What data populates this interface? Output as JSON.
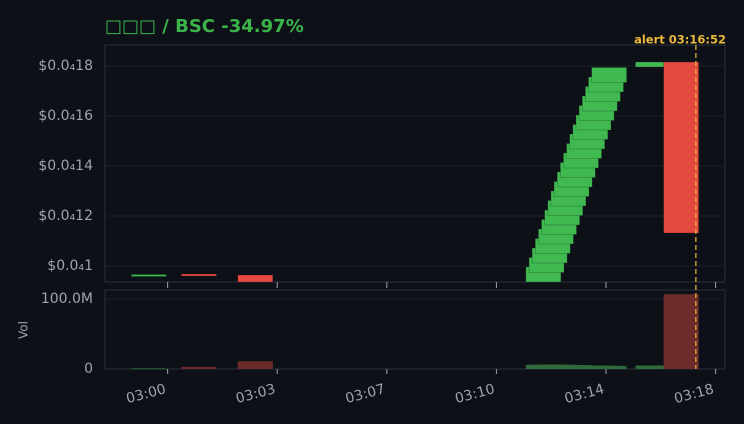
{
  "chart_data": {
    "type": "candlestick",
    "title": "□□□ / BSC  -34.97%",
    "x": [
      -0.6,
      1.0,
      2.8,
      12.0,
      12.1,
      12.2,
      12.3,
      12.4,
      12.5,
      12.6,
      12.7,
      12.8,
      12.9,
      13.0,
      13.1,
      13.2,
      13.3,
      13.4,
      13.5,
      13.6,
      13.7,
      13.8,
      13.9,
      14.0,
      14.1,
      15.5,
      16.4
    ],
    "open": [
      9.64e-06,
      9.68e-06,
      9.64e-06,
      9.36e-06,
      9.74e-06,
      1.012e-05,
      1.05e-05,
      1.088e-05,
      1.126e-05,
      1.164e-05,
      1.202e-05,
      1.24e-05,
      1.278e-05,
      1.316e-05,
      1.354e-05,
      1.392e-05,
      1.43e-05,
      1.468e-05,
      1.506e-05,
      1.544e-05,
      1.582e-05,
      1.62e-05,
      1.658e-05,
      1.696e-05,
      1.734e-05,
      1.796e-05,
      1.816e-05
    ],
    "close": [
      9.66e-06,
      9.66e-06,
      9.36e-06,
      9.96e-06,
      1.034e-05,
      1.072e-05,
      1.11e-05,
      1.148e-05,
      1.186e-05,
      1.224e-05,
      1.262e-05,
      1.3e-05,
      1.338e-05,
      1.376e-05,
      1.414e-05,
      1.452e-05,
      1.49e-05,
      1.528e-05,
      1.566e-05,
      1.604e-05,
      1.642e-05,
      1.68e-05,
      1.718e-05,
      1.756e-05,
      1.794e-05,
      1.816e-05,
      1.132e-05
    ],
    "volume": [
      1000000,
      3000000,
      11000000,
      6000000,
      6000000,
      6000000,
      6000000,
      6000000,
      6000000,
      5500000,
      5500000,
      5500000,
      5500000,
      5500000,
      5000000,
      5000000,
      5000000,
      5000000,
      5000000,
      5000000,
      4500000,
      4500000,
      4500000,
      4500000,
      4000000,
      5000000,
      107000000
    ],
    "up_color": "#3fb950",
    "down_color": "#e5483f",
    "up_volume_color": "#2f6a3a",
    "down_volume_color": "#6b2b2b",
    "xlim": [
      -2,
      17.8
    ],
    "xticks": [
      {
        "value": 0,
        "label": "03:00"
      },
      {
        "value": 3.5,
        "label": "03:03"
      },
      {
        "value": 7,
        "label": "03:07"
      },
      {
        "value": 10.5,
        "label": "03:10"
      },
      {
        "value": 14,
        "label": "03:14"
      },
      {
        "value": 17.5,
        "label": "03:18"
      }
    ],
    "ylim": [
      9.36e-06,
      1.884e-05
    ],
    "yticks": [
      {
        "value": 1e-05,
        "label": "$0.0₄1"
      },
      {
        "value": 1.2e-05,
        "label": "$0.0₄12"
      },
      {
        "value": 1.4e-05,
        "label": "$0.0₄14"
      },
      {
        "value": 1.6e-05,
        "label": "$0.0₄16"
      },
      {
        "value": 1.8e-05,
        "label": "$0.0₄18"
      }
    ],
    "volume_label": "Vol",
    "volume_ylim": [
      0,
      113000000
    ],
    "volume_yticks": [
      0,
      {
        "value": 100000000,
        "label": "100.0M"
      }
    ],
    "grid": true,
    "alert": {
      "label": "alert 03:16:52",
      "x": 16.87
    }
  }
}
